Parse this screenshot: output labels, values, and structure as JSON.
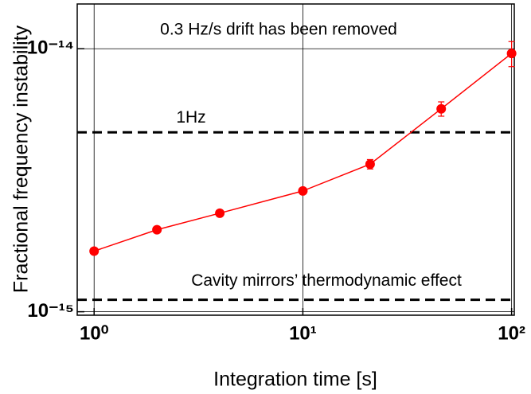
{
  "chart_data": {
    "type": "scatter",
    "xlabel": "Integration time [s]",
    "ylabel": "Fractional frequency instability",
    "x": [
      1,
      2,
      4,
      10,
      21,
      46,
      100
    ],
    "values": [
      1.7e-15,
      2.05e-15,
      2.37e-15,
      2.88e-15,
      3.64e-15,
      5.91e-15,
      9.6e-15
    ],
    "errors": [
      3e-17,
      3e-17,
      3e-17,
      4e-17,
      1.5e-16,
      3.7e-16,
      1.05e-15
    ],
    "color": "#ff0000",
    "xlim": [
      0.83,
      103
    ],
    "ylim": [
      9.7e-16,
      1.48e-14
    ],
    "xscale": "log",
    "yscale": "log",
    "xticks": [
      {
        "value": 1,
        "label": "10⁰"
      },
      {
        "value": 10,
        "label": "10¹"
      },
      {
        "value": 100,
        "label": "10²"
      }
    ],
    "yticks": [
      {
        "value": 1e-15,
        "label": "10⁻¹⁵"
      },
      {
        "value": 1e-14,
        "label": "10⁻¹⁴"
      }
    ],
    "grid": true,
    "hlines": [
      {
        "value": 4.81e-15,
        "label": "1Hz"
      },
      {
        "value": 1.11e-15,
        "label": "Cavity mirrors’ thermodynamic effect"
      }
    ],
    "annotations": [
      "0.3 Hz/s drift has been removed"
    ]
  }
}
